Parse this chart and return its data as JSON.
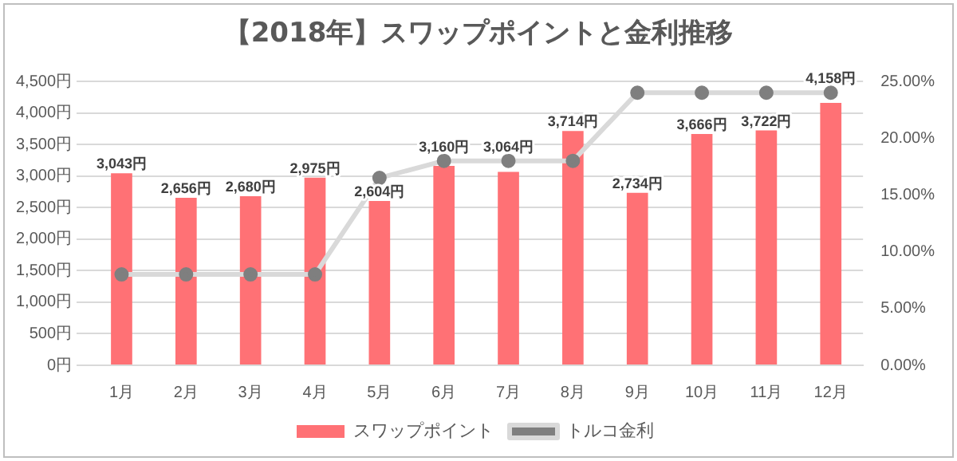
{
  "chart_data": {
    "type": "bar",
    "title": "【2018年】スワップポイントと金利推移",
    "categories": [
      "1月",
      "2月",
      "3月",
      "4月",
      "5月",
      "6月",
      "7月",
      "8月",
      "9月",
      "10月",
      "11月",
      "12月"
    ],
    "series": [
      {
        "name": "スワップポイント",
        "color": "#ff7175",
        "values": [
          3043,
          2656,
          2680,
          2975,
          2604,
          3160,
          3064,
          3714,
          2734,
          3666,
          3722,
          4158
        ],
        "value_labels": [
          "3,043円",
          "2,656円",
          "2,680円",
          "2,975円",
          "2,604円",
          "3,160円",
          "3,064円",
          "3,714円",
          "2,734円",
          "3,666円",
          "3,722円",
          "4,158円"
        ]
      },
      {
        "name": "トルコ金利",
        "type": "line",
        "axis": "y2",
        "color": "#d9d9d9",
        "values": [
          8,
          8,
          8,
          8,
          16.5,
          18,
          18,
          18,
          24,
          24,
          24,
          24
        ]
      }
    ],
    "ylim": [
      0,
      4500
    ],
    "yticks": [
      {
        "value": 0,
        "label": "0円"
      },
      {
        "value": 500,
        "label": "500円"
      },
      {
        "value": 1000,
        "label": "1,000円"
      },
      {
        "value": 1500,
        "label": "1,500円"
      },
      {
        "value": 2000,
        "label": "2,000円"
      },
      {
        "value": 2500,
        "label": "2,500円"
      },
      {
        "value": 3000,
        "label": "3,000円"
      },
      {
        "value": 3500,
        "label": "3,500円"
      },
      {
        "value": 4000,
        "label": "4,000円"
      },
      {
        "value": 4500,
        "label": "4,500円"
      }
    ],
    "y2lim": [
      0,
      25
    ],
    "y2ticks": [
      {
        "value": 0,
        "label": "0.00%"
      },
      {
        "value": 5,
        "label": "5.00%"
      },
      {
        "value": 10,
        "label": "10.00%"
      },
      {
        "value": 15,
        "label": "15.00%"
      },
      {
        "value": 20,
        "label": "20.00%"
      },
      {
        "value": 25,
        "label": "25.00%"
      }
    ],
    "grid": "y",
    "legend": "bottom",
    "marker": "circle",
    "line_style": "solid"
  }
}
